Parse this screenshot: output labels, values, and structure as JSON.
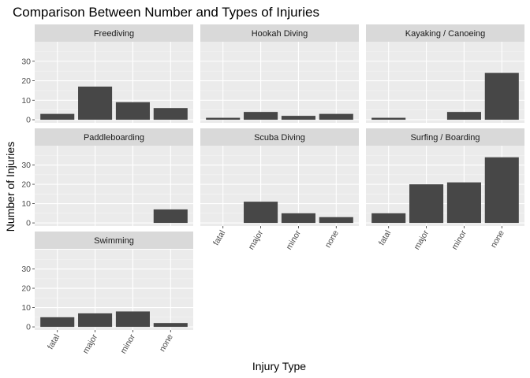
{
  "chart_data": {
    "type": "bar",
    "title": "Comparison Between Number and Types of Injuries",
    "xlabel": "Injury Type",
    "ylabel": "Number of Injuries",
    "categories": [
      "fatal",
      "major",
      "minor",
      "none"
    ],
    "ylim": [
      0,
      40
    ],
    "yticks": [
      0,
      10,
      20,
      30
    ],
    "grid": true,
    "colors": {
      "bar": "#474747",
      "panel": "#ebebeb",
      "strip": "#d9d9d9",
      "grid": "#ffffff"
    },
    "facets": [
      {
        "name": "Freediving",
        "values": [
          3,
          17,
          9,
          6
        ]
      },
      {
        "name": "Hookah Diving",
        "values": [
          1,
          4,
          2,
          3
        ]
      },
      {
        "name": "Kayaking / Canoeing",
        "values": [
          1,
          0,
          4,
          24
        ]
      },
      {
        "name": "Paddleboarding",
        "values": [
          0,
          0,
          0,
          7
        ]
      },
      {
        "name": "Scuba Diving",
        "values": [
          0,
          11,
          5,
          3
        ]
      },
      {
        "name": "Surfing / Boarding",
        "values": [
          5,
          20,
          21,
          34
        ]
      },
      {
        "name": "Swimming",
        "values": [
          5,
          7,
          8,
          2
        ]
      }
    ]
  }
}
